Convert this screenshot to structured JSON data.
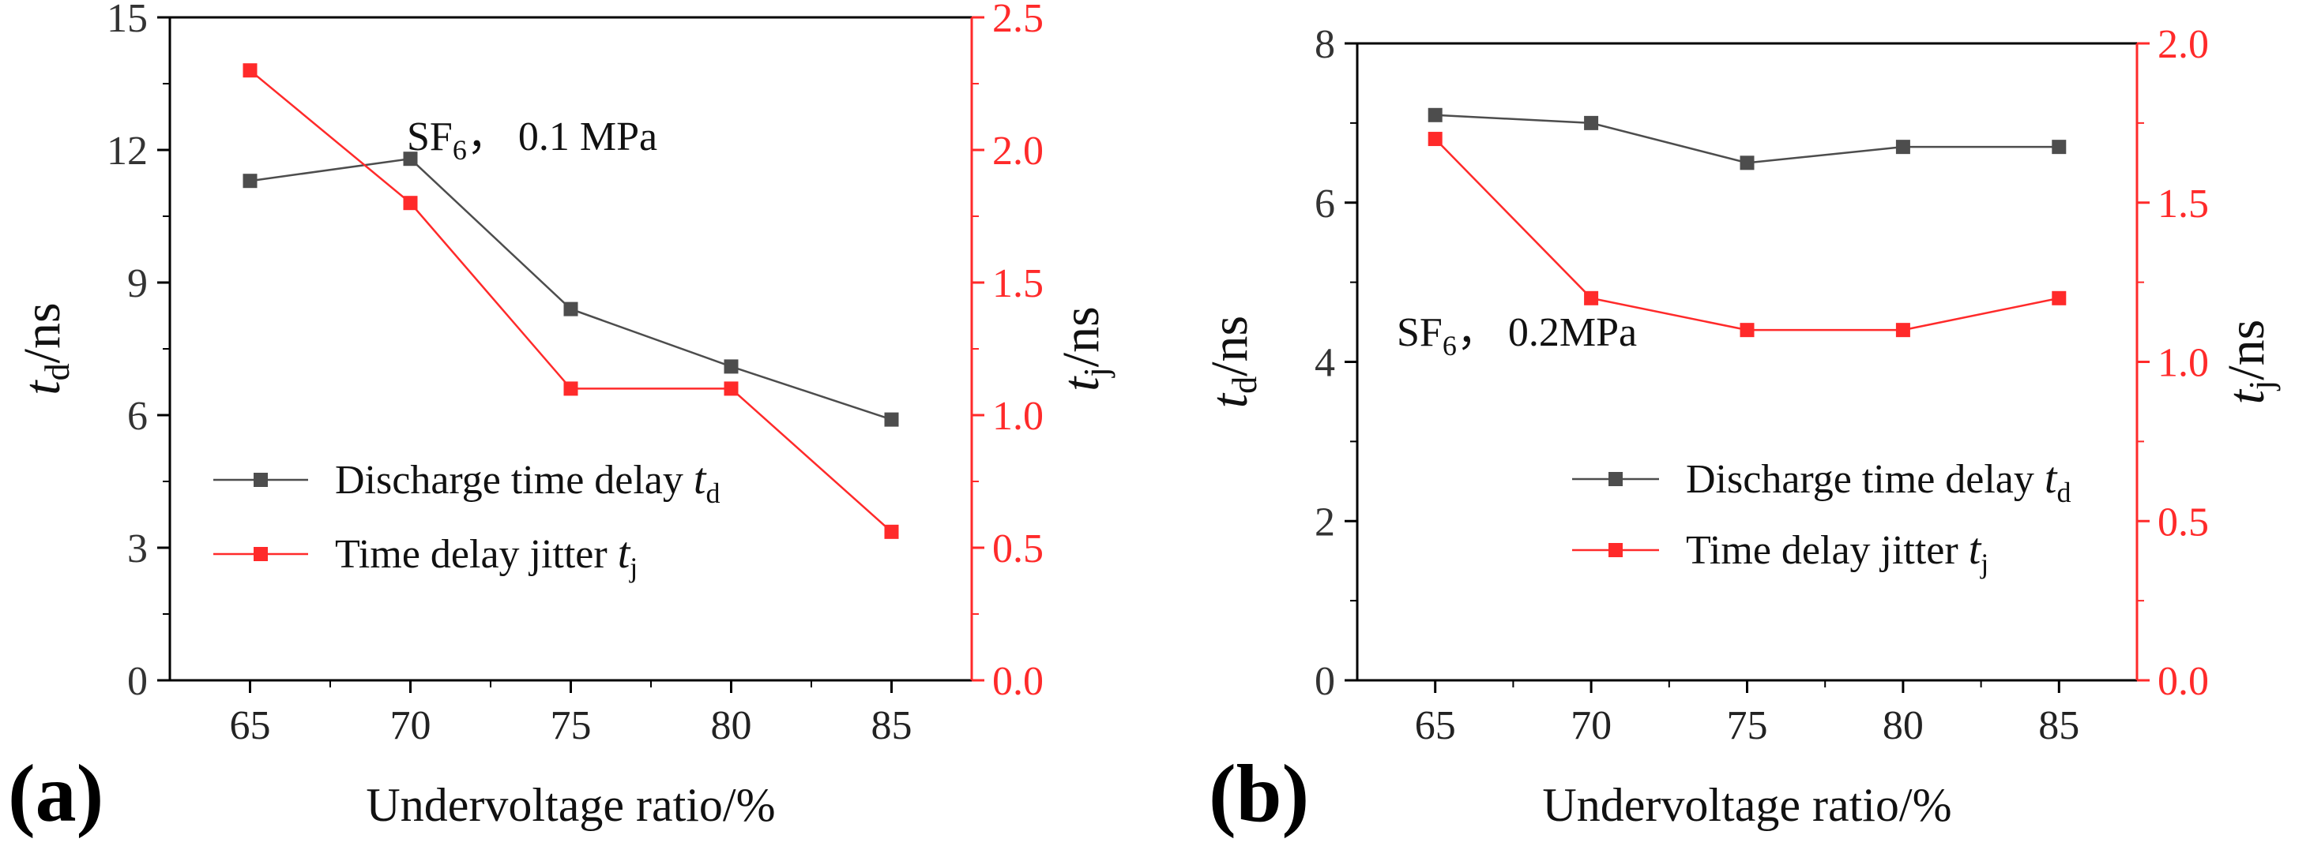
{
  "colors": {
    "td": "#4d4d4d",
    "tj": "#ff2a2a",
    "axis": "#000000",
    "right_axis": "#ff2a2a"
  },
  "chart_data": [
    {
      "id": "a",
      "panel_label": "(a)",
      "type": "line",
      "annotation": {
        "prefix": "SF",
        "subscript": "6",
        "text": "， 0.1 MPa"
      },
      "xlabel": "Undervoltage ratio/%",
      "ylabel_left": {
        "main": "t",
        "sub": "d",
        "rest": "/ns"
      },
      "ylabel_right": {
        "main": "t",
        "sub": "j",
        "rest": "/ns"
      },
      "x": [
        65,
        70,
        75,
        80,
        85
      ],
      "xlim": [
        62.5,
        87.5
      ],
      "xticks": [
        65,
        70,
        75,
        80,
        85
      ],
      "xtick_labels": [
        "65",
        "70",
        "75",
        "80",
        "85"
      ],
      "ylim_left": [
        0,
        15
      ],
      "yticks_left": [
        0,
        3,
        6,
        9,
        12,
        15
      ],
      "ytick_labels_left": [
        "0",
        "3",
        "6",
        "9",
        "12",
        "15"
      ],
      "ylim_right": [
        0,
        2.5
      ],
      "yticks_right": [
        0,
        0.5,
        1.0,
        1.5,
        2.0,
        2.5
      ],
      "ytick_labels_right": [
        "0.0",
        "0.5",
        "1.0",
        "1.5",
        "2.0",
        "2.5"
      ],
      "series": [
        {
          "name": "Discharge time delay ",
          "name_main": "t",
          "name_sub": "d",
          "axis": "left",
          "values": [
            11.3,
            11.8,
            8.4,
            7.1,
            5.9
          ]
        },
        {
          "name": "Time delay jitter ",
          "name_main": "t",
          "name_sub": "j",
          "axis": "right",
          "values": [
            2.3,
            1.8,
            1.1,
            1.1,
            0.56
          ]
        }
      ],
      "legend_position": "lower-left"
    },
    {
      "id": "b",
      "panel_label": "(b)",
      "type": "line",
      "annotation": {
        "prefix": "SF",
        "subscript": "6",
        "text": "， 0.2MPa"
      },
      "xlabel": "Undervoltage ratio/%",
      "ylabel_left": {
        "main": "t",
        "sub": "d",
        "rest": "/ns"
      },
      "ylabel_right": {
        "main": "t",
        "sub": "j",
        "rest": "/ns"
      },
      "x": [
        65,
        70,
        75,
        80,
        85
      ],
      "xlim": [
        62.5,
        87.5
      ],
      "xticks": [
        65,
        70,
        75,
        80,
        85
      ],
      "xtick_labels": [
        "65",
        "70",
        "75",
        "80",
        "85"
      ],
      "ylim_left": [
        0,
        8
      ],
      "yticks_left": [
        0,
        2,
        4,
        6,
        8
      ],
      "ytick_labels_left": [
        "0",
        "2",
        "4",
        "6",
        "8"
      ],
      "ylim_right": [
        0,
        2.0
      ],
      "yticks_right": [
        0,
        0.5,
        1.0,
        1.5,
        2.0
      ],
      "ytick_labels_right": [
        "0.0",
        "0.5",
        "1.0",
        "1.5",
        "2.0"
      ],
      "series": [
        {
          "name": "Discharge time delay ",
          "name_main": "t",
          "name_sub": "d",
          "axis": "left",
          "values": [
            7.1,
            7.0,
            6.5,
            6.7,
            6.7
          ]
        },
        {
          "name": "Time delay jitter ",
          "name_main": "t",
          "name_sub": "j",
          "axis": "right",
          "values": [
            1.7,
            1.2,
            1.1,
            1.1,
            1.2
          ]
        }
      ],
      "legend_position": "lower-right"
    }
  ]
}
